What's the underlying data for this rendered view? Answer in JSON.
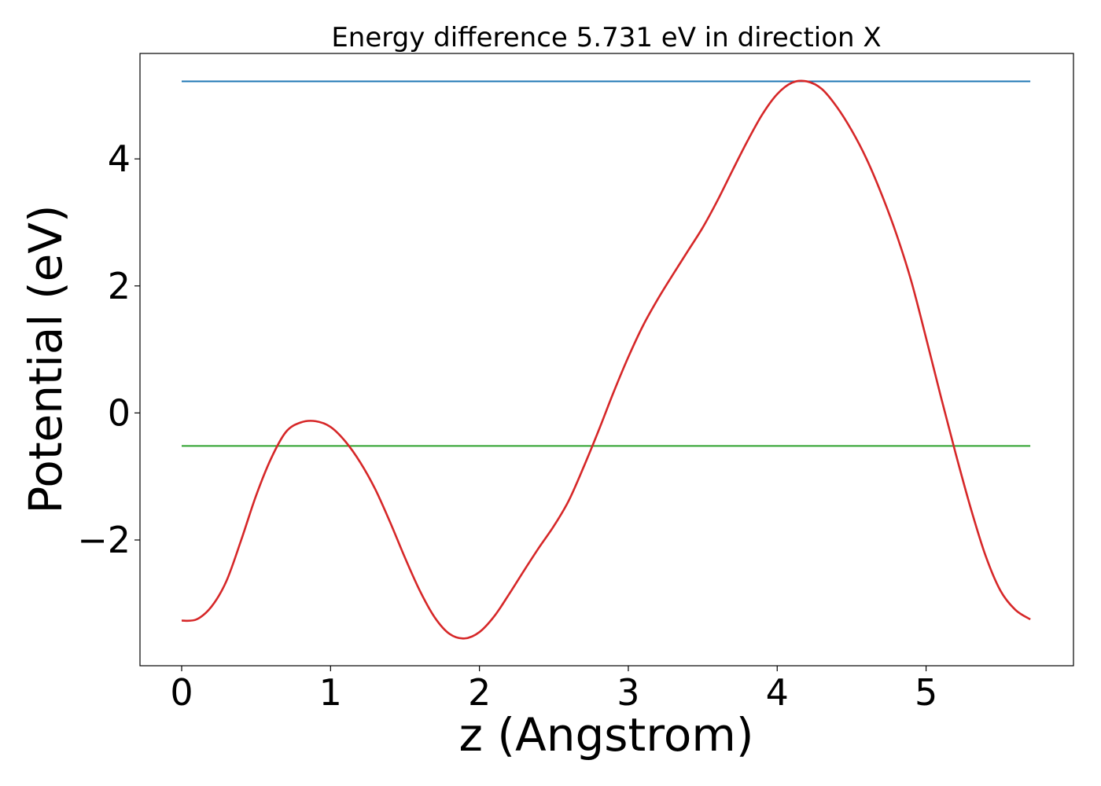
{
  "chart_data": {
    "type": "line",
    "title": "Energy difference 5.731 eV in direction X",
    "xlabel": "z (Angstrom)",
    "ylabel": "Potential (eV)",
    "xlim": [
      -0.28,
      5.99
    ],
    "ylim": [
      -3.98,
      5.66
    ],
    "xticks": [
      0,
      1,
      2,
      3,
      4,
      5
    ],
    "xtick_labels": [
      "0",
      "1",
      "2",
      "3",
      "4",
      "5"
    ],
    "yticks": [
      -2,
      0,
      2,
      4
    ],
    "ytick_labels": [
      "−2",
      "0",
      "2",
      "4"
    ],
    "grid": false,
    "series": [
      {
        "color": "#d62728",
        "x": [
          0.0,
          0.1,
          0.2,
          0.3,
          0.4,
          0.5,
          0.6,
          0.7,
          0.8,
          0.9,
          1.0,
          1.1,
          1.2,
          1.3,
          1.4,
          1.5,
          1.6,
          1.7,
          1.8,
          1.9,
          2.0,
          2.1,
          2.2,
          2.3,
          2.4,
          2.5,
          2.6,
          2.7,
          2.8,
          2.9,
          3.0,
          3.1,
          3.2,
          3.3,
          3.4,
          3.5,
          3.6,
          3.7,
          3.8,
          3.9,
          4.0,
          4.1,
          4.2,
          4.3,
          4.4,
          4.5,
          4.6,
          4.7,
          4.8,
          4.9,
          5.0,
          5.1,
          5.2,
          5.3,
          5.4,
          5.5,
          5.6,
          5.7
        ],
        "y": [
          -3.27,
          -3.25,
          -3.05,
          -2.65,
          -2.0,
          -1.3,
          -0.72,
          -0.3,
          -0.15,
          -0.13,
          -0.22,
          -0.45,
          -0.78,
          -1.2,
          -1.72,
          -2.28,
          -2.8,
          -3.22,
          -3.48,
          -3.55,
          -3.45,
          -3.2,
          -2.85,
          -2.48,
          -2.12,
          -1.78,
          -1.38,
          -0.85,
          -0.28,
          0.32,
          0.88,
          1.38,
          1.8,
          2.18,
          2.55,
          2.92,
          3.35,
          3.82,
          4.28,
          4.7,
          5.02,
          5.2,
          5.22,
          5.1,
          4.82,
          4.45,
          4.0,
          3.45,
          2.82,
          2.08,
          1.18,
          0.25,
          -0.65,
          -1.5,
          -2.25,
          -2.8,
          -3.1,
          -3.25
        ]
      },
      {
        "color": "#1f77b4",
        "x": [
          0.0,
          5.7
        ],
        "y": [
          5.22,
          5.22
        ]
      },
      {
        "color": "#2ca02c",
        "x": [
          0.0,
          5.7
        ],
        "y": [
          -0.52,
          -0.52
        ]
      }
    ]
  }
}
